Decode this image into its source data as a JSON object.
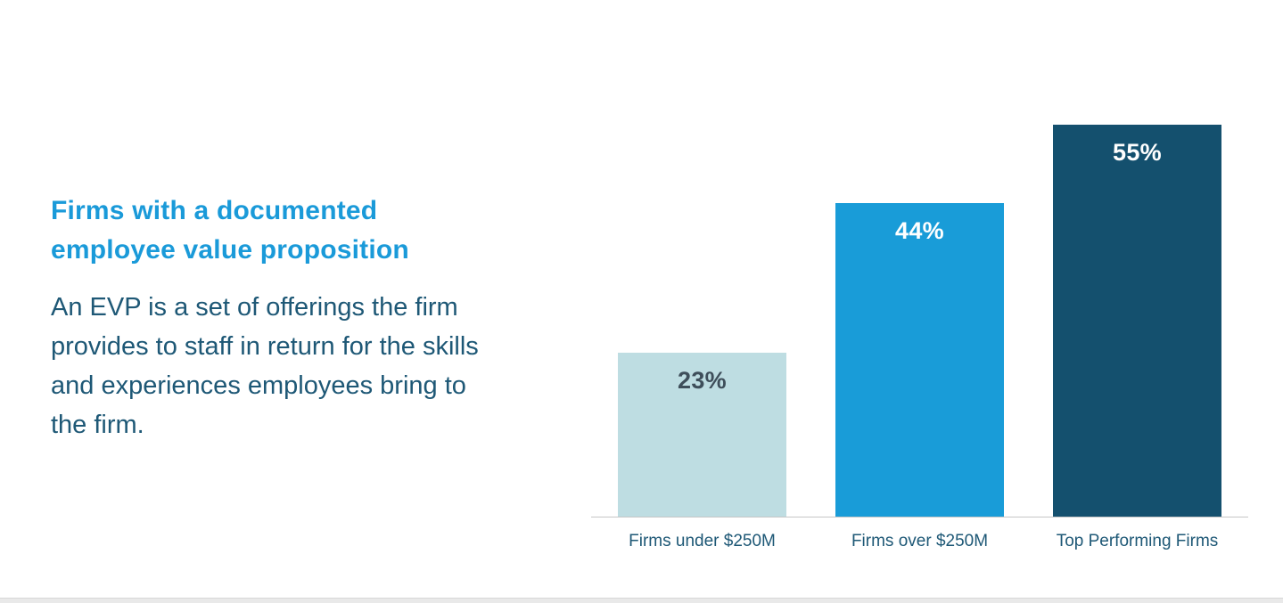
{
  "left_panel": {
    "title": "Firms with a documented employee value proposition",
    "description": "An EVP is a set of offerings the firm provides to staff in return for the skills and experiences employees bring to the firm."
  },
  "chart_data": {
    "type": "bar",
    "title": "Firms with a documented employee value proposition",
    "categories": [
      "Firms under $250M",
      "Firms over $250M",
      "Top Performing Firms"
    ],
    "values": [
      23,
      44,
      55
    ],
    "value_labels": [
      "23%",
      "44%",
      "55%"
    ],
    "xlabel": "",
    "ylabel": "",
    "ylim": [
      0,
      60
    ],
    "grid": false,
    "legend": false,
    "bar_colors": [
      "#bedde2",
      "#199cd8",
      "#14506e"
    ],
    "value_label_colors": [
      "#3e4e5a",
      "#ffffff",
      "#ffffff"
    ]
  },
  "colors": {
    "title_text": "#1a9ad9",
    "body_text": "#1e5876",
    "axis_line": "#c6c6c6",
    "category_label": "#1e5876",
    "bottom_strip": "#e9e9e9"
  }
}
